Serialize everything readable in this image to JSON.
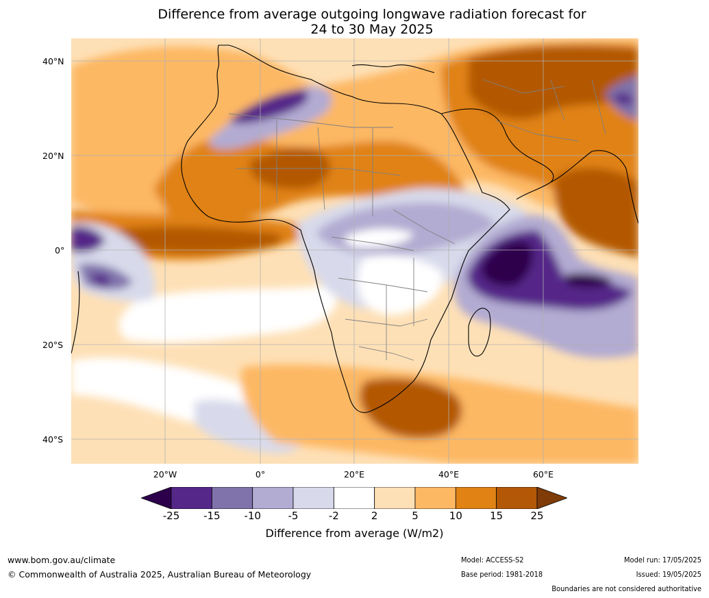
{
  "title_line1": "Difference from average outgoing longwave radiation forecast for",
  "title_line2": "24 to 30 May 2025",
  "lat_labels": [
    "40°N",
    "20°N",
    "0°",
    "20°S",
    "40°S"
  ],
  "lon_labels": [
    "20°W",
    "0°",
    "20°E",
    "40°E",
    "60°E"
  ],
  "colorbar": {
    "ticks": [
      "-25",
      "-15",
      "-10",
      "-5",
      "-2",
      "2",
      "5",
      "10",
      "15",
      "25"
    ],
    "colors": [
      "#2d004b",
      "#542788",
      "#8073ac",
      "#b2abd2",
      "#d8daeb",
      "#ffffff",
      "#fee0b6",
      "#fdb863",
      "#e08214",
      "#b35806",
      "#7f3b08"
    ],
    "label": "Difference from average (W/m2)"
  },
  "footer": {
    "website": "www.bom.gov.au/climate",
    "copyright": "© Commonwealth of Australia 2025, Australian Bureau of Meteorology",
    "model": "Model: ACCESS-S2",
    "base_period": "Base period: 1981-2018",
    "model_run": "Model run: 17/05/2025",
    "issued": "Issued: 19/05/2025",
    "disclaimer": "Boundaries are not considered authoritative"
  }
}
